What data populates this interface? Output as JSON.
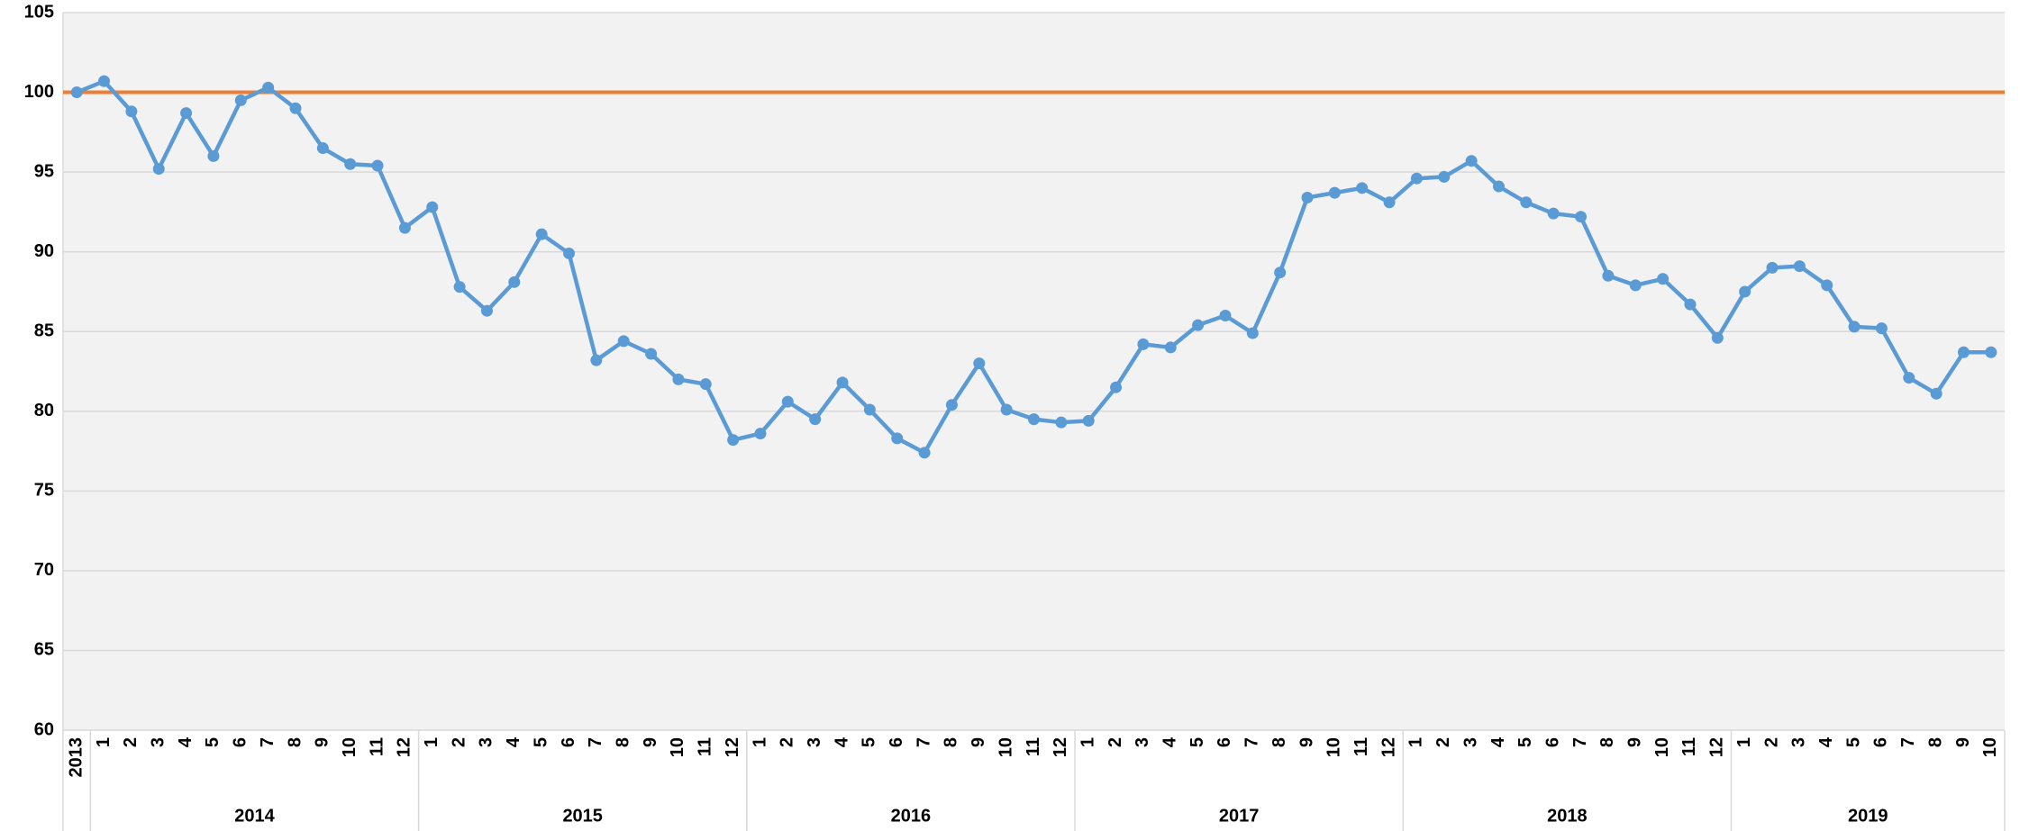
{
  "chart_data": {
    "type": "line",
    "groups": [
      {
        "name": null,
        "categories": [
          "2013"
        ]
      },
      {
        "name": "2014",
        "categories": [
          "1",
          "2",
          "3",
          "4",
          "5",
          "6",
          "7",
          "8",
          "9",
          "10",
          "11",
          "12"
        ]
      },
      {
        "name": "2015",
        "categories": [
          "1",
          "2",
          "3",
          "4",
          "5",
          "6",
          "7",
          "8",
          "9",
          "10",
          "11",
          "12"
        ]
      },
      {
        "name": "2016",
        "categories": [
          "1",
          "2",
          "3",
          "4",
          "5",
          "6",
          "7",
          "8",
          "9",
          "10",
          "11",
          "12"
        ]
      },
      {
        "name": "2017",
        "categories": [
          "1",
          "2",
          "3",
          "4",
          "5",
          "6",
          "7",
          "8",
          "9",
          "10",
          "11",
          "12"
        ]
      },
      {
        "name": "2018",
        "categories": [
          "1",
          "2",
          "3",
          "4",
          "5",
          "6",
          "7",
          "8",
          "9",
          "10",
          "11",
          "12"
        ]
      },
      {
        "name": "2019",
        "categories": [
          "1",
          "2",
          "3",
          "4",
          "5",
          "6",
          "7",
          "8",
          "9",
          "10"
        ]
      }
    ],
    "series": [
      {
        "name": null,
        "color": "#5b9bd5",
        "values": [
          100.0,
          100.7,
          98.8,
          95.2,
          98.7,
          96.0,
          99.5,
          100.3,
          99.0,
          96.5,
          95.5,
          95.4,
          91.5,
          92.8,
          87.8,
          86.3,
          88.1,
          91.1,
          89.9,
          83.2,
          84.4,
          83.6,
          82.0,
          81.7,
          78.2,
          78.6,
          80.6,
          79.5,
          81.8,
          80.1,
          78.3,
          77.4,
          80.4,
          83.0,
          80.1,
          79.5,
          79.3,
          79.4,
          81.5,
          84.2,
          84.0,
          85.4,
          86.0,
          84.9,
          88.7,
          93.4,
          93.7,
          94.0,
          93.1,
          94.6,
          94.7,
          95.7,
          94.1,
          93.1,
          92.4,
          92.2,
          88.5,
          87.9,
          88.3,
          86.7,
          84.6,
          87.5,
          89.0,
          89.1,
          87.9,
          85.3,
          85.2,
          82.1,
          81.1,
          83.7,
          83.7
        ]
      }
    ],
    "reference_line": {
      "value": 100,
      "color": "#ed7d31"
    },
    "ylim": [
      60,
      105
    ],
    "yticks": [
      60,
      65,
      70,
      75,
      80,
      85,
      90,
      95,
      100,
      105
    ],
    "grid": true
  }
}
